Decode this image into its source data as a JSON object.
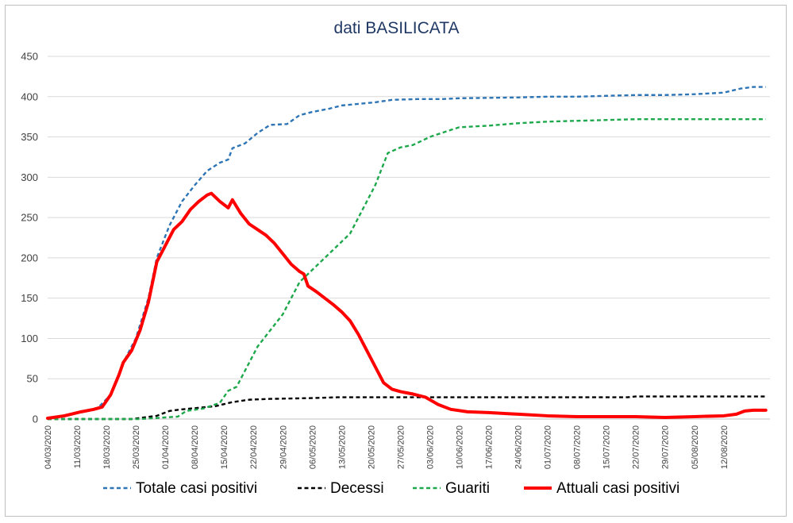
{
  "chart_data": {
    "type": "line",
    "title": "dati BASILICATA",
    "xlabel": "",
    "ylabel": "",
    "ylim": [
      0,
      450
    ],
    "yticks": [
      0,
      50,
      100,
      150,
      200,
      250,
      300,
      350,
      400,
      450
    ],
    "grid": "horizontal",
    "legend": "bottom",
    "xlim": [
      "04/03/2020",
      "23/08/2020"
    ],
    "x_tick_labels": [
      "04/03/2020",
      "11/03/2020",
      "18/03/2020",
      "25/03/2020",
      "01/04/2020",
      "08/04/2020",
      "15/04/2020",
      "22/04/2020",
      "29/04/2020",
      "06/05/2020",
      "13/05/2020",
      "20/05/2020",
      "27/05/2020",
      "03/06/2020",
      "10/06/2020",
      "17/06/2020",
      "24/06/2020",
      "01/07/2020",
      "08/07/2020",
      "15/07/2020",
      "22/07/2020",
      "29/07/2020",
      "05/08/2020",
      "12/08/2020"
    ],
    "series": [
      {
        "name": "Totale casi positivi",
        "color": "#2e75b6",
        "style": "dashed",
        "points": [
          [
            "04/03/2020",
            1
          ],
          [
            "08/03/2020",
            4
          ],
          [
            "12/03/2020",
            9
          ],
          [
            "16/03/2020",
            14
          ],
          [
            "19/03/2020",
            30
          ],
          [
            "22/03/2020",
            70
          ],
          [
            "25/03/2020",
            100
          ],
          [
            "28/03/2020",
            150
          ],
          [
            "30/03/2020",
            200
          ],
          [
            "02/04/2020",
            240
          ],
          [
            "05/04/2020",
            270
          ],
          [
            "08/04/2020",
            290
          ],
          [
            "11/04/2020",
            308
          ],
          [
            "14/04/2020",
            318
          ],
          [
            "16/04/2020",
            322
          ],
          [
            "17/04/2020",
            336
          ],
          [
            "20/04/2020",
            342
          ],
          [
            "23/04/2020",
            355
          ],
          [
            "26/04/2020",
            365
          ],
          [
            "30/04/2020",
            366
          ],
          [
            "03/05/2020",
            377
          ],
          [
            "06/05/2020",
            381
          ],
          [
            "10/05/2020",
            385
          ],
          [
            "13/05/2020",
            389
          ],
          [
            "17/05/2020",
            391
          ],
          [
            "21/05/2020",
            393
          ],
          [
            "25/05/2020",
            396
          ],
          [
            "31/05/2020",
            397
          ],
          [
            "06/06/2020",
            397
          ],
          [
            "10/06/2020",
            398
          ],
          [
            "24/06/2020",
            399
          ],
          [
            "01/07/2020",
            400
          ],
          [
            "08/07/2020",
            400
          ],
          [
            "15/07/2020",
            401
          ],
          [
            "22/07/2020",
            402
          ],
          [
            "29/07/2020",
            402
          ],
          [
            "05/08/2020",
            403
          ],
          [
            "12/08/2020",
            405
          ],
          [
            "16/08/2020",
            410
          ],
          [
            "19/08/2020",
            412
          ],
          [
            "22/08/2020",
            412
          ]
        ]
      },
      {
        "name": "Decessi",
        "color": "#000000",
        "style": "dashed",
        "points": [
          [
            "04/03/2020",
            0
          ],
          [
            "24/03/2020",
            0
          ],
          [
            "27/03/2020",
            2
          ],
          [
            "30/03/2020",
            4
          ],
          [
            "02/04/2020",
            10
          ],
          [
            "05/04/2020",
            12
          ],
          [
            "09/04/2020",
            14
          ],
          [
            "13/04/2020",
            16
          ],
          [
            "17/04/2020",
            21
          ],
          [
            "21/04/2020",
            24
          ],
          [
            "26/04/2020",
            25
          ],
          [
            "06/05/2020",
            26
          ],
          [
            "12/05/2020",
            27
          ],
          [
            "27/05/2020",
            27
          ],
          [
            "03/06/2020",
            27
          ],
          [
            "20/07/2020",
            27
          ],
          [
            "22/07/2020",
            28
          ],
          [
            "22/08/2020",
            28
          ]
        ]
      },
      {
        "name": "Guariti",
        "color": "#1ea84c",
        "style": "dashed",
        "points": [
          [
            "04/03/2020",
            0
          ],
          [
            "26/03/2020",
            0
          ],
          [
            "29/03/2020",
            1
          ],
          [
            "04/04/2020",
            3
          ],
          [
            "06/04/2020",
            10
          ],
          [
            "10/04/2020",
            13
          ],
          [
            "14/04/2020",
            20
          ],
          [
            "16/04/2020",
            35
          ],
          [
            "18/04/2020",
            40
          ],
          [
            "20/04/2020",
            60
          ],
          [
            "23/04/2020",
            90
          ],
          [
            "26/04/2020",
            110
          ],
          [
            "29/04/2020",
            130
          ],
          [
            "01/05/2020",
            150
          ],
          [
            "03/05/2020",
            170
          ],
          [
            "06/05/2020",
            185
          ],
          [
            "09/05/2020",
            200
          ],
          [
            "12/05/2020",
            215
          ],
          [
            "15/05/2020",
            230
          ],
          [
            "18/05/2020",
            260
          ],
          [
            "21/05/2020",
            290
          ],
          [
            "24/05/2020",
            330
          ],
          [
            "27/05/2020",
            337
          ],
          [
            "30/05/2020",
            340
          ],
          [
            "03/06/2020",
            350
          ],
          [
            "07/06/2020",
            357
          ],
          [
            "10/06/2020",
            362
          ],
          [
            "17/06/2020",
            364
          ],
          [
            "24/06/2020",
            367
          ],
          [
            "01/07/2020",
            369
          ],
          [
            "08/07/2020",
            370
          ],
          [
            "15/07/2020",
            371
          ],
          [
            "22/07/2020",
            372
          ],
          [
            "22/08/2020",
            372
          ]
        ]
      },
      {
        "name": "Attuali casi positivi",
        "color": "#ff0000",
        "style": "solid",
        "points": [
          [
            "04/03/2020",
            1
          ],
          [
            "08/03/2020",
            4
          ],
          [
            "12/03/2020",
            9
          ],
          [
            "15/03/2020",
            12
          ],
          [
            "17/03/2020",
            15
          ],
          [
            "19/03/2020",
            30
          ],
          [
            "21/03/2020",
            55
          ],
          [
            "22/03/2020",
            70
          ],
          [
            "24/03/2020",
            85
          ],
          [
            "26/03/2020",
            110
          ],
          [
            "28/03/2020",
            145
          ],
          [
            "30/03/2020",
            195
          ],
          [
            "01/04/2020",
            215
          ],
          [
            "03/04/2020",
            235
          ],
          [
            "05/04/2020",
            245
          ],
          [
            "07/04/2020",
            260
          ],
          [
            "09/04/2020",
            270
          ],
          [
            "11/04/2020",
            278
          ],
          [
            "12/04/2020",
            280
          ],
          [
            "14/04/2020",
            270
          ],
          [
            "16/04/2020",
            262
          ],
          [
            "17/04/2020",
            272
          ],
          [
            "19/04/2020",
            255
          ],
          [
            "21/04/2020",
            242
          ],
          [
            "23/04/2020",
            235
          ],
          [
            "25/04/2020",
            228
          ],
          [
            "27/04/2020",
            218
          ],
          [
            "29/04/2020",
            205
          ],
          [
            "01/05/2020",
            192
          ],
          [
            "03/05/2020",
            183
          ],
          [
            "04/05/2020",
            180
          ],
          [
            "05/05/2020",
            165
          ],
          [
            "07/05/2020",
            158
          ],
          [
            "09/05/2020",
            150
          ],
          [
            "11/05/2020",
            142
          ],
          [
            "13/05/2020",
            133
          ],
          [
            "15/05/2020",
            122
          ],
          [
            "17/05/2020",
            105
          ],
          [
            "19/05/2020",
            85
          ],
          [
            "21/05/2020",
            65
          ],
          [
            "23/05/2020",
            45
          ],
          [
            "25/05/2020",
            37
          ],
          [
            "27/05/2020",
            34
          ],
          [
            "30/05/2020",
            31
          ],
          [
            "02/06/2020",
            27
          ],
          [
            "05/06/2020",
            18
          ],
          [
            "08/06/2020",
            12
          ],
          [
            "12/06/2020",
            9
          ],
          [
            "17/06/2020",
            8
          ],
          [
            "24/06/2020",
            6
          ],
          [
            "01/07/2020",
            4
          ],
          [
            "08/07/2020",
            3
          ],
          [
            "15/07/2020",
            3
          ],
          [
            "22/07/2020",
            3
          ],
          [
            "29/07/2020",
            2
          ],
          [
            "05/08/2020",
            3
          ],
          [
            "12/08/2020",
            4
          ],
          [
            "15/08/2020",
            6
          ],
          [
            "17/08/2020",
            10
          ],
          [
            "19/08/2020",
            11
          ],
          [
            "22/08/2020",
            11
          ]
        ]
      }
    ]
  }
}
